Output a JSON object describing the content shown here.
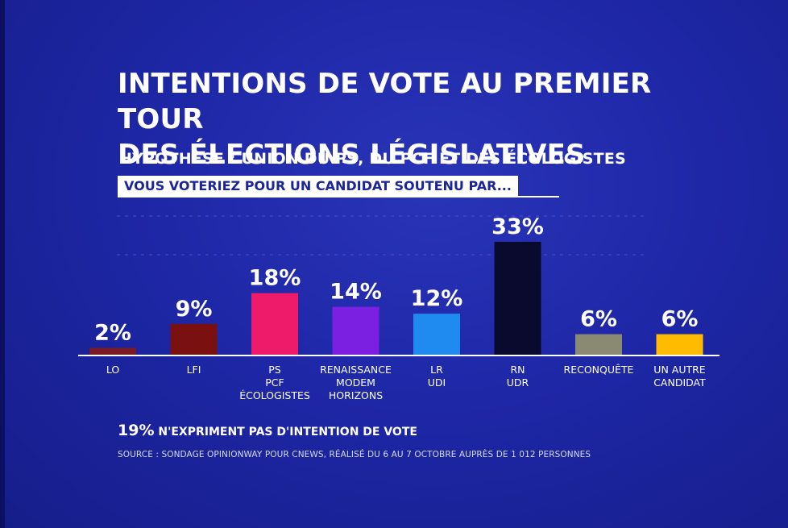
{
  "title_line1": "INTENTIONS DE VOTE AU PREMIER TOUR",
  "title_line2": "DES ÉLECTIONS LÉGISLATIVES",
  "subtitle": "HYPOTHÈSE : UNION DU PS, DU PCF ET DES ÉCOLOGISTES",
  "question": "VOUS VOTERIEZ POUR UN CANDIDAT SOUTENU PAR...",
  "note": {
    "pct": "19%",
    "text": " N'EXPRIMENT PAS D'INTENTION DE VOTE"
  },
  "source": "SOURCE : SONDAGE OPINIONWAY POUR CNEWS, RÉALISÉ DU 6 AU 7 OCTOBRE AUPRÈS DE 1 012 PERSONNES",
  "colors": {
    "background": "#1e27a6",
    "bars": [
      "#7a1a24",
      "#7a1010",
      "#ee1b6a",
      "#7b1fe0",
      "#1f8af0",
      "#0a0a2e",
      "#8a8a72",
      "#ffbb00"
    ]
  },
  "chart_data": {
    "type": "bar",
    "categories": [
      [
        "LO"
      ],
      [
        "LFI"
      ],
      [
        "PS",
        "PCF",
        "ÉCOLOGISTES"
      ],
      [
        "RENAISSANCE",
        "MODEM",
        "HORIZONS"
      ],
      [
        "LR",
        "UDI"
      ],
      [
        "RN",
        "UDR"
      ],
      [
        "RECONQUÊTE"
      ],
      [
        "UN AUTRE",
        "CANDIDAT"
      ]
    ],
    "values": [
      2,
      9,
      18,
      14,
      12,
      33,
      6,
      6
    ],
    "value_labels": [
      "2%",
      "9%",
      "18%",
      "14%",
      "12%",
      "33%",
      "6%",
      "6%"
    ],
    "ylim": [
      0,
      35
    ],
    "grid": true
  }
}
